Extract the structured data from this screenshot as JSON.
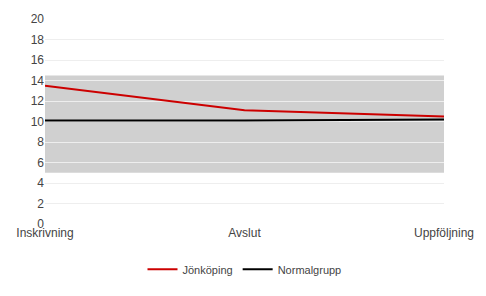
{
  "chart_data": {
    "type": "line",
    "categories": [
      "Inskrivning",
      "Avslut",
      "Uppföljning"
    ],
    "series": [
      {
        "name": "Normalgrupp",
        "color": "#000000",
        "values": [
          10.1,
          10.1,
          10.2
        ]
      },
      {
        "name": "Jönköping",
        "color": "#cc0000",
        "values": [
          13.5,
          11.1,
          10.5
        ]
      }
    ],
    "shaded": {
      "range": [
        5.0,
        14.5
      ],
      "color": "#d0d0d0"
    },
    "ylim": [
      0,
      20
    ],
    "yticks": [
      0,
      2,
      4,
      6,
      8,
      10,
      12,
      14,
      16,
      18,
      20
    ],
    "grid": true,
    "legend": "bottom"
  }
}
